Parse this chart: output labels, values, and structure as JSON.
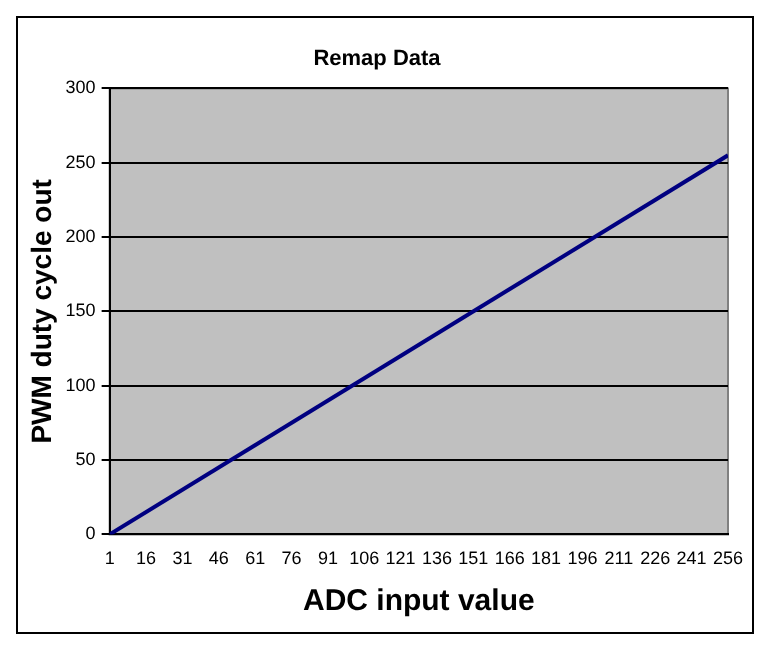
{
  "chart_data": {
    "type": "line",
    "title": "Remap Data",
    "xlabel": "ADC input value",
    "ylabel": "PWM duty cycle out",
    "x": [
      1,
      256
    ],
    "series": [
      {
        "color": "#000080",
        "values": [
          0,
          255
        ]
      }
    ],
    "xlim": [
      1,
      256
    ],
    "xticks": [
      1,
      16,
      31,
      46,
      61,
      76,
      91,
      106,
      121,
      136,
      151,
      166,
      181,
      196,
      211,
      226,
      241,
      256
    ],
    "ylim": [
      0,
      300
    ],
    "yticks": [
      0,
      50,
      100,
      150,
      200,
      250,
      300
    ],
    "grid": "y",
    "legend": false,
    "marker": "none",
    "line_style": "solid"
  }
}
